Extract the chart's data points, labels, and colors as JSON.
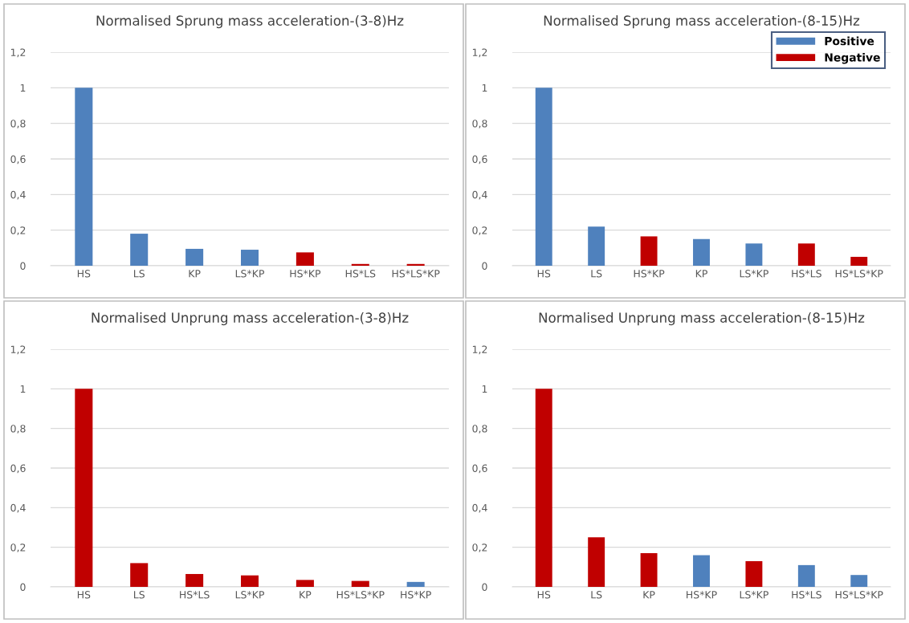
{
  "chart_data": [
    {
      "type": "bar",
      "title": "Normalised Sprung mass acceleration-(3-8)Hz",
      "categories": [
        "HS",
        "LS",
        "KP",
        "LS*KP",
        "HS*KP",
        "HS*LS",
        "HS*LS*KP"
      ],
      "series": [
        {
          "color": "#4f81bd",
          "values": [
            1,
            0.18,
            0.095,
            0.09,
            null,
            null,
            null
          ]
        },
        {
          "color": "#c00000",
          "values": [
            null,
            null,
            null,
            null,
            0.075,
            0.01,
            0.01
          ]
        }
      ],
      "ylim": [
        0,
        1.2
      ],
      "yticks": [
        0,
        {
          "value": 0.2,
          "label": "0,2"
        },
        {
          "value": 0.4,
          "label": "0,4"
        },
        {
          "value": 0.6,
          "label": "0,6"
        },
        {
          "value": 0.8,
          "label": "0,8"
        },
        1,
        {
          "value": 1.2,
          "label": "1,2"
        }
      ],
      "grid": "y",
      "legend": false
    },
    {
      "type": "bar",
      "title": "Normalised Sprung mass acceleration-(8-15)Hz",
      "categories": [
        "HS",
        "LS",
        "HS*KP",
        "KP",
        "LS*KP",
        "HS*LS",
        "HS*LS*KP"
      ],
      "series": [
        {
          "name": "Positive",
          "color": "#4f81bd",
          "values": [
            1,
            0.22,
            null,
            0.15,
            0.125,
            null,
            null
          ]
        },
        {
          "name": "Negative",
          "color": "#c00000",
          "values": [
            null,
            null,
            0.165,
            null,
            null,
            0.125,
            0.05
          ]
        }
      ],
      "ylim": [
        0,
        1.2
      ],
      "yticks": [
        0,
        {
          "value": 0.2,
          "label": "0,2"
        },
        {
          "value": 0.4,
          "label": "0,4"
        },
        {
          "value": 0.6,
          "label": "0,6"
        },
        {
          "value": 0.8,
          "label": "0,8"
        },
        1,
        {
          "value": 1.2,
          "label": "1,2"
        }
      ],
      "grid": "y",
      "legend": "top right"
    },
    {
      "type": "bar",
      "title": "Normalised Unprung mass acceleration-(3-8)Hz",
      "categories": [
        "HS",
        "LS",
        "HS*LS",
        "LS*KP",
        "KP",
        "HS*LS*KP",
        "HS*KP"
      ],
      "series": [
        {
          "color": "#4f81bd",
          "values": [
            null,
            null,
            null,
            null,
            null,
            null,
            0.025
          ]
        },
        {
          "color": "#c00000",
          "values": [
            1,
            0.12,
            0.065,
            0.058,
            0.035,
            0.03,
            null
          ]
        }
      ],
      "ylim": [
        0,
        1.2
      ],
      "yticks": [
        0,
        {
          "value": 0.2,
          "label": "0,2"
        },
        {
          "value": 0.4,
          "label": "0,4"
        },
        {
          "value": 0.6,
          "label": "0,6"
        },
        {
          "value": 0.8,
          "label": "0,8"
        },
        1,
        {
          "value": 1.2,
          "label": "1,2"
        }
      ],
      "grid": "y",
      "legend": false
    },
    {
      "type": "bar",
      "title": "Normalised Unprung mass acceleration-(8-15)Hz",
      "categories": [
        "HS",
        "LS",
        "KP",
        "HS*KP",
        "LS*KP",
        "HS*LS",
        "HS*LS*KP"
      ],
      "series": [
        {
          "color": "#4f81bd",
          "values": [
            null,
            null,
            null,
            0.16,
            null,
            0.11,
            0.06
          ]
        },
        {
          "color": "#c00000",
          "values": [
            1,
            0.25,
            0.17,
            null,
            0.13,
            null,
            null
          ]
        }
      ],
      "ylim": [
        0,
        1.2
      ],
      "yticks": [
        0,
        {
          "value": 0.2,
          "label": "0,2"
        },
        {
          "value": 0.4,
          "label": "0,4"
        },
        {
          "value": 0.6,
          "label": "0,6"
        },
        {
          "value": 0.8,
          "label": "0,8"
        },
        1,
        {
          "value": 1.2,
          "label": "1,2"
        }
      ],
      "grid": "y",
      "legend": false
    }
  ]
}
